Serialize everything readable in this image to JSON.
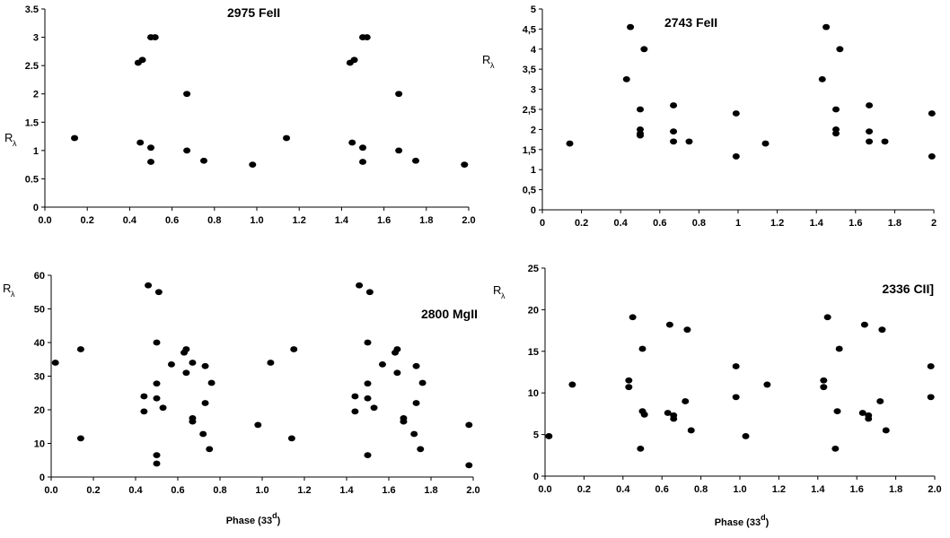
{
  "chart_data": [
    {
      "type": "scatter",
      "title": "2975 FeII",
      "ylabel": "R",
      "ylabel_sub": "λ",
      "xlabel": "",
      "xlim": [
        0,
        2
      ],
      "ylim": [
        0,
        3.5
      ],
      "xticks": [
        "0.0",
        "0.2",
        "0.4",
        "0.6",
        "0.8",
        "1.0",
        "1.2",
        "1.4",
        "1.6",
        "1.8",
        "2.0"
      ],
      "yticks": [
        "0",
        "0.5",
        "1",
        "1.5",
        "2",
        "2.5",
        "3",
        "3.5"
      ],
      "series": [
        {
          "x": [
            0.14,
            0.44,
            0.45,
            0.46,
            0.5,
            0.5,
            0.5,
            0.52,
            0.67,
            0.67,
            0.75,
            0.98,
            1.14,
            1.44,
            1.45,
            1.46,
            1.5,
            1.5,
            1.5,
            1.52,
            1.67,
            1.67,
            1.75,
            1.98
          ],
          "y": [
            1.22,
            2.55,
            1.14,
            2.6,
            3.0,
            1.05,
            0.8,
            3.0,
            2.0,
            1.0,
            0.82,
            0.75,
            1.22,
            2.55,
            1.14,
            2.6,
            3.0,
            1.05,
            0.8,
            3.0,
            2.0,
            1.0,
            0.82,
            0.75
          ]
        }
      ]
    },
    {
      "type": "scatter",
      "title": "2743 FeII",
      "ylabel": "R",
      "ylabel_sub": "λ",
      "xlabel": "",
      "xlim": [
        0,
        2
      ],
      "ylim": [
        0,
        5
      ],
      "xticks": [
        "0",
        "0.2",
        "0.4",
        "0.6",
        "0.8",
        "1",
        "1.2",
        "1.4",
        "1.6",
        "1.8",
        "2"
      ],
      "yticks": [
        "0",
        "0,5",
        "1",
        "1,5",
        "2",
        "2,5",
        "3",
        "3,5",
        "4",
        "4,5",
        "5"
      ],
      "series": [
        {
          "x": [
            0.14,
            0.43,
            0.45,
            0.5,
            0.5,
            0.5,
            0.5,
            0.52,
            0.67,
            0.67,
            0.67,
            0.75,
            0.99,
            0.99,
            1.14,
            1.43,
            1.45,
            1.5,
            1.5,
            1.5,
            1.52,
            1.67,
            1.67,
            1.67,
            1.75,
            1.99,
            1.99
          ],
          "y": [
            1.65,
            3.25,
            4.55,
            2.5,
            2.0,
            1.9,
            1.85,
            4.0,
            2.6,
            1.95,
            1.7,
            1.7,
            2.4,
            1.33,
            1.65,
            3.25,
            4.55,
            2.5,
            2.0,
            1.9,
            4.0,
            2.6,
            1.95,
            1.7,
            1.7,
            2.4,
            1.33
          ]
        }
      ]
    },
    {
      "type": "scatter",
      "title": "2800 MgII",
      "ylabel": "R",
      "ylabel_sub": "λ",
      "xlabel": "Phase (33",
      "xlabel_sup": "d",
      "xlabel_end": ")",
      "xlim": [
        0,
        2
      ],
      "ylim": [
        0,
        60
      ],
      "xticks": [
        "0.0",
        "0.2",
        "0.4",
        "0.6",
        "0.8",
        "1.0",
        "1.2",
        "1.4",
        "1.6",
        "1.8",
        "2.0"
      ],
      "yticks": [
        "0",
        "10",
        "20",
        "30",
        "40",
        "50",
        "60"
      ],
      "series": [
        {
          "x": [
            0.02,
            0.14,
            0.14,
            0.44,
            0.44,
            0.46,
            0.5,
            0.5,
            0.5,
            0.5,
            0.5,
            0.51,
            0.53,
            0.57,
            0.63,
            0.64,
            0.64,
            0.67,
            0.67,
            0.67,
            0.72,
            0.73,
            0.73,
            0.75,
            0.76,
            0.98,
            1.04,
            1.14,
            1.15,
            1.44,
            1.44,
            1.46,
            1.5,
            1.5,
            1.5,
            1.5,
            1.51,
            1.53,
            1.57,
            1.63,
            1.64,
            1.64,
            1.67,
            1.67,
            1.72,
            1.73,
            1.73,
            1.75,
            1.76,
            1.98,
            1.98
          ],
          "y": [
            34,
            11.5,
            38,
            19.5,
            24,
            57,
            40,
            27.8,
            23.4,
            6.5,
            4,
            55,
            20.6,
            33.5,
            37,
            31,
            38,
            17.5,
            16.5,
            34,
            12.8,
            22,
            33,
            8.3,
            28,
            15.5,
            34,
            11.5,
            38,
            19.5,
            24,
            57,
            40,
            27.8,
            23.4,
            6.5,
            55,
            20.6,
            33.5,
            37,
            31,
            38,
            17.5,
            16.5,
            12.8,
            22,
            33,
            8.3,
            28,
            15.5,
            3.5
          ]
        }
      ]
    },
    {
      "type": "scatter",
      "title": "2336 CII]",
      "ylabel": "R",
      "ylabel_sub": "λ",
      "xlabel": "Phase (33",
      "xlabel_sup": "d",
      "xlabel_end": ")",
      "xlim": [
        0,
        2
      ],
      "ylim": [
        0,
        25
      ],
      "xticks": [
        "0.0",
        "0.2",
        "0.4",
        "0.6",
        "0.8",
        "1.0",
        "1.2",
        "1.4",
        "1.6",
        "1.8",
        "2.0"
      ],
      "yticks": [
        "0",
        "5",
        "10",
        "15",
        "20",
        "25"
      ],
      "series": [
        {
          "x": [
            0.02,
            0.14,
            0.43,
            0.43,
            0.45,
            0.49,
            0.5,
            0.5,
            0.51,
            0.63,
            0.64,
            0.66,
            0.66,
            0.72,
            0.73,
            0.75,
            0.98,
            0.98,
            1.03,
            1.14,
            1.43,
            1.43,
            1.45,
            1.49,
            1.5,
            1.51,
            1.63,
            1.64,
            1.66,
            1.66,
            1.72,
            1.73,
            1.75,
            1.98,
            1.98
          ],
          "y": [
            4.8,
            11,
            10.7,
            11.5,
            19.1,
            3.3,
            7.8,
            15.3,
            7.4,
            7.6,
            18.2,
            7.3,
            6.9,
            9,
            17.6,
            5.5,
            13.2,
            9.5,
            4.8,
            11,
            10.7,
            11.5,
            19.1,
            3.3,
            7.8,
            15.3,
            7.6,
            18.2,
            7.3,
            6.9,
            9,
            17.6,
            5.5,
            13.2,
            9.5
          ]
        }
      ]
    }
  ]
}
